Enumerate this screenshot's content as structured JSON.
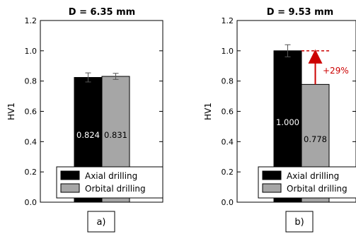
{
  "chart_data": [
    {
      "type": "bar",
      "title": "D = 6.35 mm",
      "ylabel": "HV1",
      "ylim": [
        0,
        1.2
      ],
      "yticks": [
        "0.0",
        "0.2",
        "0.4",
        "0.6",
        "0.8",
        "1.0",
        "1.2"
      ],
      "yticks_values": [
        0,
        0.2,
        0.4,
        0.6,
        0.8,
        1.0,
        1.2
      ],
      "series": [
        {
          "name": "Axial drilling",
          "value": 0.824,
          "error": 0.03,
          "label": "0.824",
          "color": "#000000",
          "label_color": "#ffffff"
        },
        {
          "name": "Orbital drilling",
          "value": 0.831,
          "error": 0.02,
          "label": "0.831",
          "color": "#a6a6a6",
          "label_color": "#000000"
        }
      ],
      "legend": [
        "Axial drilling",
        "Orbital drilling"
      ],
      "legend_placement": "lower-right",
      "panel_label": "a)"
    },
    {
      "type": "bar",
      "title": "D = 9.53 mm",
      "ylabel": "HV1",
      "ylim": [
        0,
        1.2
      ],
      "yticks": [
        "0.0",
        "0.2",
        "0.4",
        "0.6",
        "0.8",
        "1.0",
        "1.2"
      ],
      "yticks_values": [
        0,
        0.2,
        0.4,
        0.6,
        0.8,
        1.0,
        1.2
      ],
      "series": [
        {
          "name": "Axial drilling",
          "value": 1.0,
          "error": 0.04,
          "label": "1.000",
          "color": "#000000",
          "label_color": "#ffffff"
        },
        {
          "name": "Orbital drilling",
          "value": 0.778,
          "error": 0.0,
          "label": "0.778",
          "color": "#a6a6a6",
          "label_color": "#000000"
        }
      ],
      "legend": [
        "Axial drilling",
        "Orbital drilling"
      ],
      "legend_placement": "lower-right",
      "annotation": {
        "text": "+29%",
        "color": "#cc0000"
      },
      "panel_label": "b)"
    }
  ]
}
